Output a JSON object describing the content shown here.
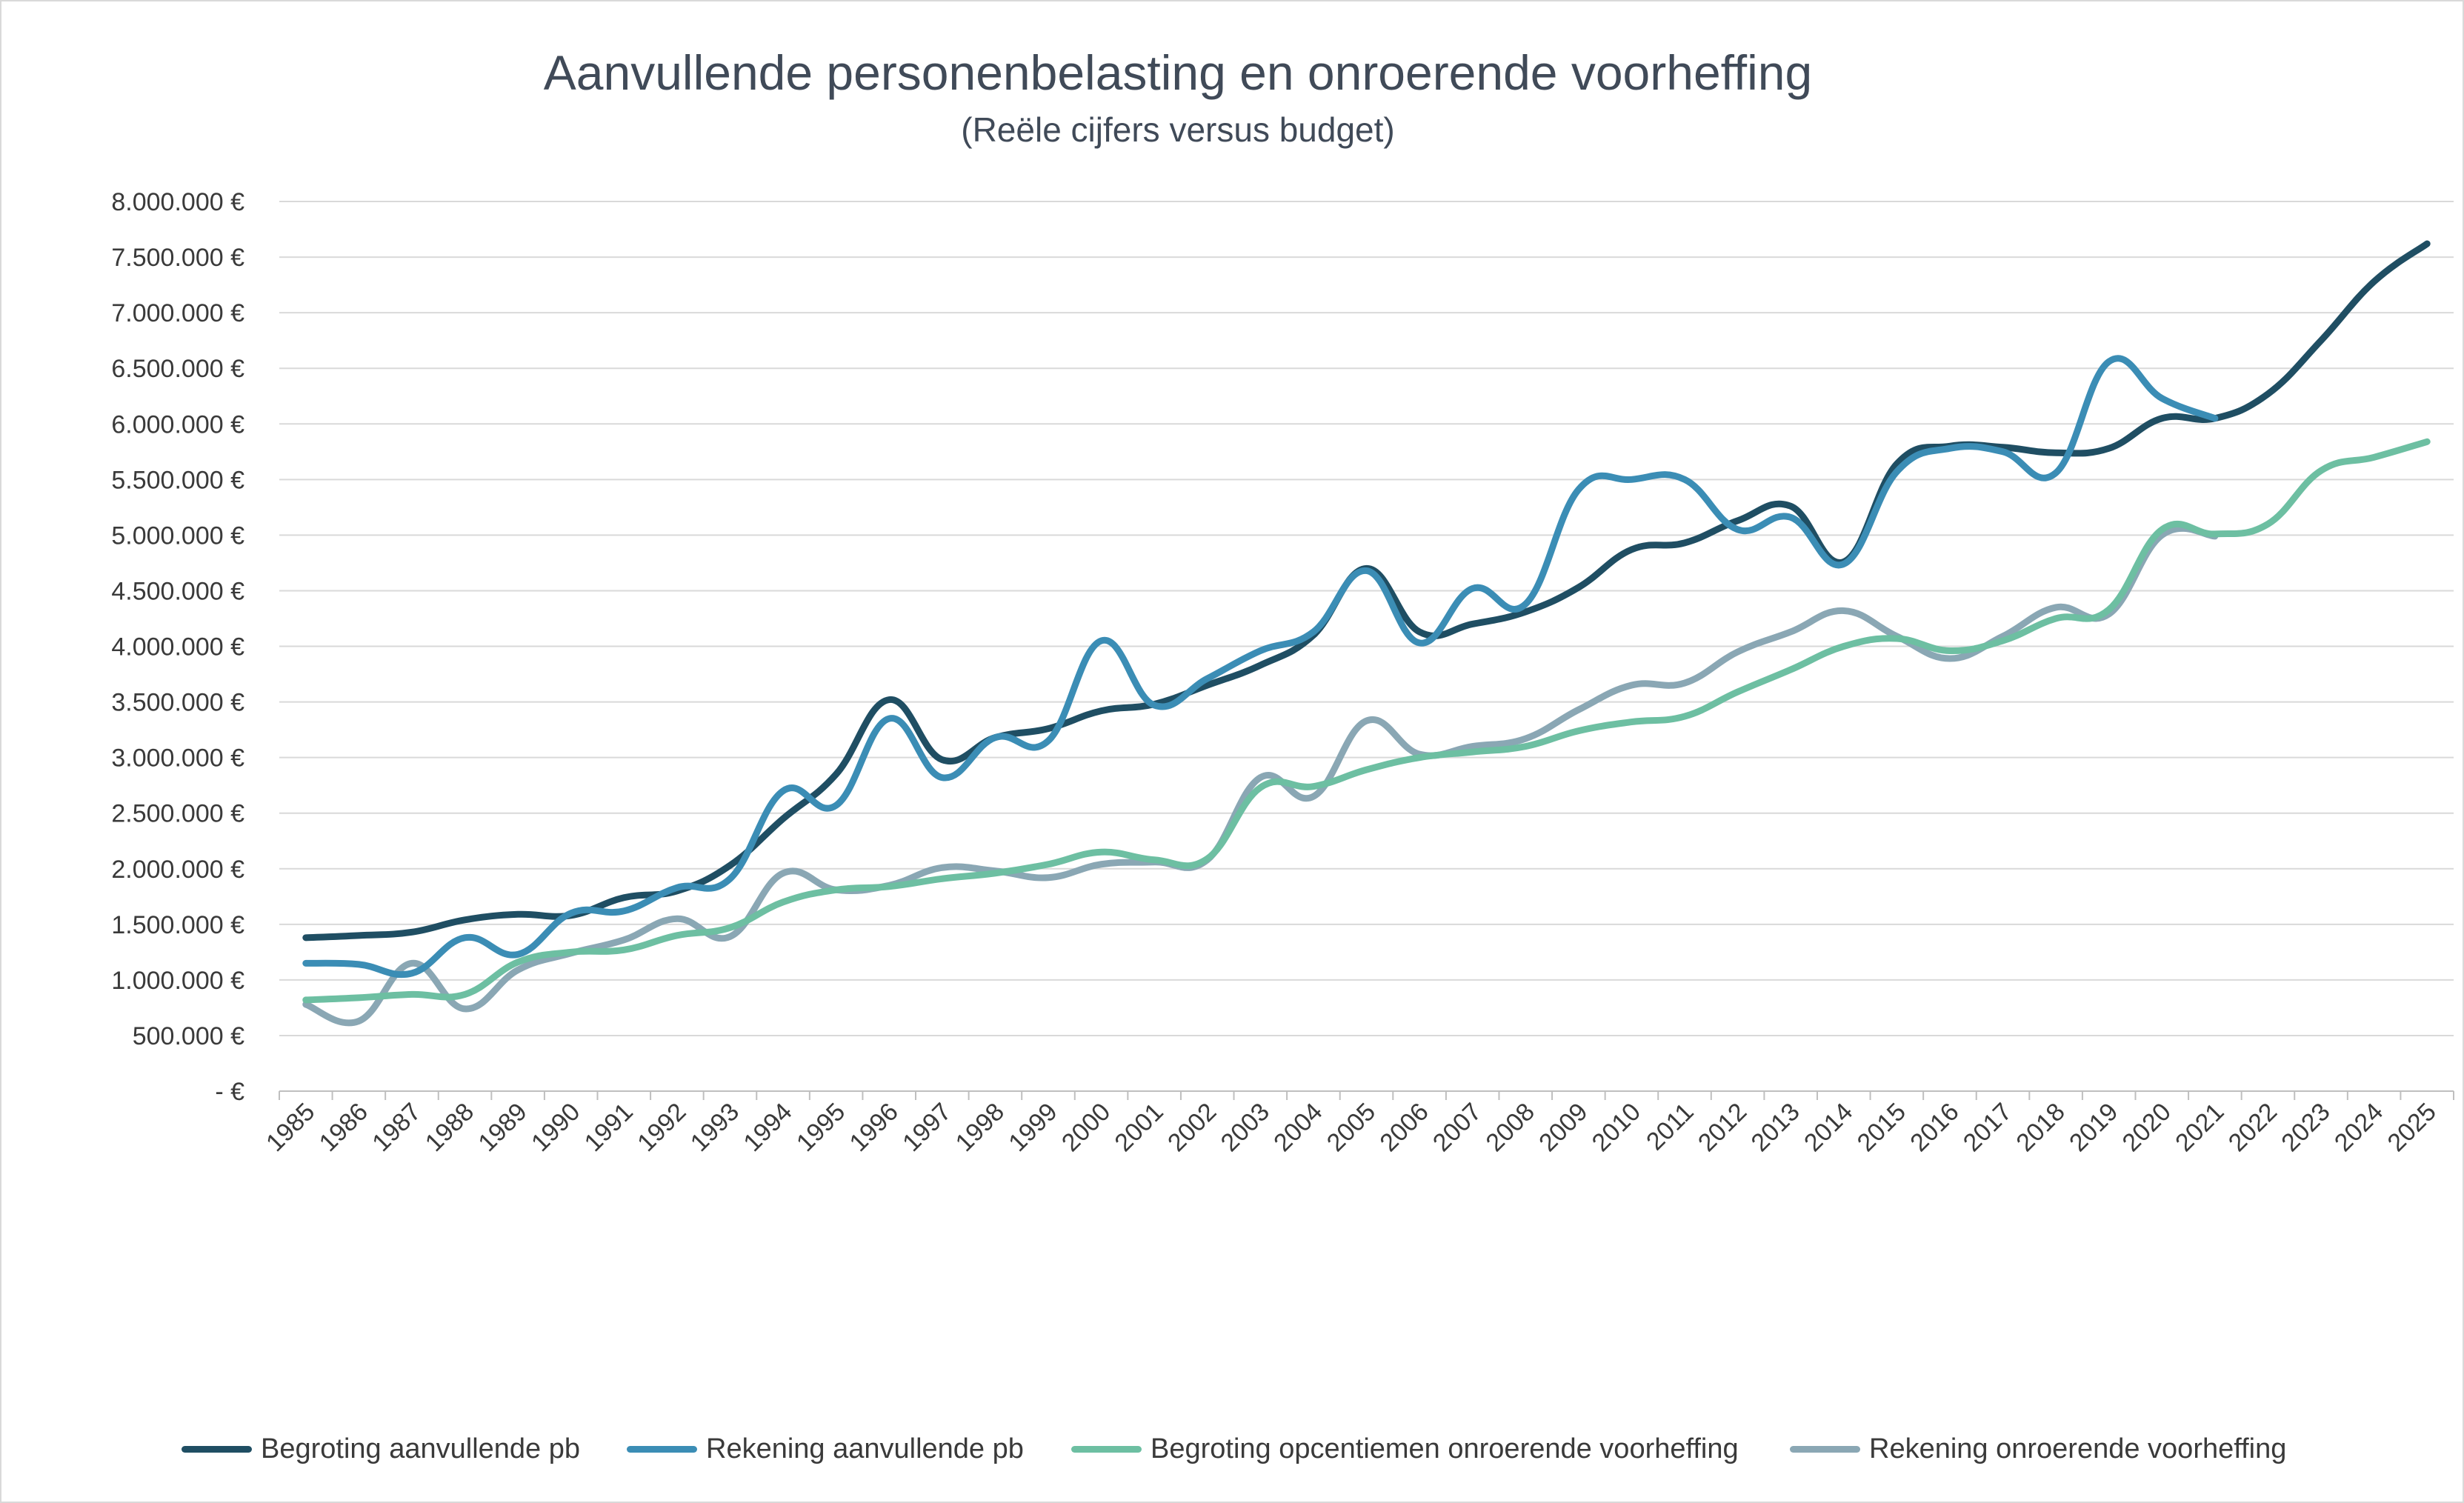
{
  "chart_data": {
    "type": "line",
    "title": "Aanvullende personenbelasting en onroerende voorheffing",
    "subtitle": "(Reële cijfers versus budget)",
    "xlabel": "",
    "ylabel": "",
    "ylim": [
      0,
      8000000
    ],
    "y_ticks": [
      0,
      500000,
      1000000,
      1500000,
      2000000,
      2500000,
      3000000,
      3500000,
      4000000,
      4500000,
      5000000,
      5500000,
      6000000,
      6500000,
      7000000,
      7500000,
      8000000
    ],
    "y_tick_labels": [
      "- €",
      "500.000 €",
      "1.000.000 €",
      "1.500.000 €",
      "2.000.000 €",
      "2.500.000 €",
      "3.000.000 €",
      "3.500.000 €",
      "4.000.000 €",
      "4.500.000 €",
      "5.000.000 €",
      "5.500.000 €",
      "6.000.000 €",
      "6.500.000 €",
      "7.000.000 €",
      "7.500.000 €",
      "8.000.000 €"
    ],
    "x": [
      "1985",
      "1986",
      "1987",
      "1988",
      "1989",
      "1990",
      "1991",
      "1992",
      "1993",
      "1994",
      "1995",
      "1996",
      "1997",
      "1998",
      "1999",
      "2000",
      "2001",
      "2002",
      "2003",
      "2004",
      "2005",
      "2006",
      "2007",
      "2008",
      "2009",
      "2010",
      "2011",
      "2012",
      "2013",
      "2014",
      "2015",
      "2016",
      "2017",
      "2018",
      "2019",
      "2020",
      "2021",
      "2022",
      "2023",
      "2024",
      "2025"
    ],
    "grid": true,
    "legend_position": "bottom",
    "series": [
      {
        "name": "Begroting aanvullende pb",
        "color": "#1f4e63",
        "values": [
          1380000,
          1400000,
          1430000,
          1540000,
          1590000,
          1580000,
          1740000,
          1800000,
          2030000,
          2450000,
          2850000,
          3520000,
          2980000,
          3180000,
          3260000,
          3420000,
          3480000,
          3650000,
          3830000,
          4100000,
          4700000,
          4130000,
          4200000,
          4310000,
          4530000,
          4870000,
          4930000,
          5130000,
          5260000,
          4760000,
          5640000,
          5800000,
          5790000,
          5740000,
          5780000,
          6050000,
          6050000,
          6270000,
          6750000,
          7280000,
          7620000
        ]
      },
      {
        "name": "Rekening aanvullende pb",
        "color": "#3b8db5",
        "values": [
          1150000,
          1140000,
          1060000,
          1380000,
          1230000,
          1600000,
          1620000,
          1830000,
          1910000,
          2700000,
          2570000,
          3350000,
          2820000,
          3180000,
          3150000,
          4050000,
          3470000,
          3710000,
          3960000,
          4130000,
          4680000,
          4030000,
          4520000,
          4380000,
          5410000,
          5500000,
          5500000,
          5050000,
          5160000,
          4740000,
          5570000,
          5780000,
          5750000,
          5560000,
          6560000,
          6230000,
          6050000,
          null,
          null,
          null,
          null
        ]
      },
      {
        "name": "Begroting opcentiemen onroerende voorheffing",
        "color": "#6dbfa2",
        "values": [
          820000,
          840000,
          870000,
          870000,
          1160000,
          1250000,
          1270000,
          1400000,
          1470000,
          1700000,
          1810000,
          1840000,
          1910000,
          1960000,
          2040000,
          2150000,
          2080000,
          2090000,
          2730000,
          2740000,
          2890000,
          3000000,
          3050000,
          3100000,
          3240000,
          3320000,
          3370000,
          3590000,
          3790000,
          4000000,
          4070000,
          3960000,
          4050000,
          4250000,
          4330000,
          5050000,
          5010000,
          5100000,
          5580000,
          5700000,
          5840000
        ]
      },
      {
        "name": "Rekening onroerende voorheffing",
        "color": "#8aa7b4",
        "values": [
          780000,
          630000,
          1150000,
          740000,
          1090000,
          1240000,
          1360000,
          1550000,
          1390000,
          1960000,
          1810000,
          1850000,
          2010000,
          1980000,
          1920000,
          2040000,
          2060000,
          2080000,
          2820000,
          2650000,
          3330000,
          3030000,
          3100000,
          3170000,
          3430000,
          3650000,
          3670000,
          3950000,
          4130000,
          4320000,
          4090000,
          3890000,
          4090000,
          4350000,
          4290000,
          5000000,
          4990000,
          null,
          null,
          null,
          null
        ]
      }
    ]
  }
}
